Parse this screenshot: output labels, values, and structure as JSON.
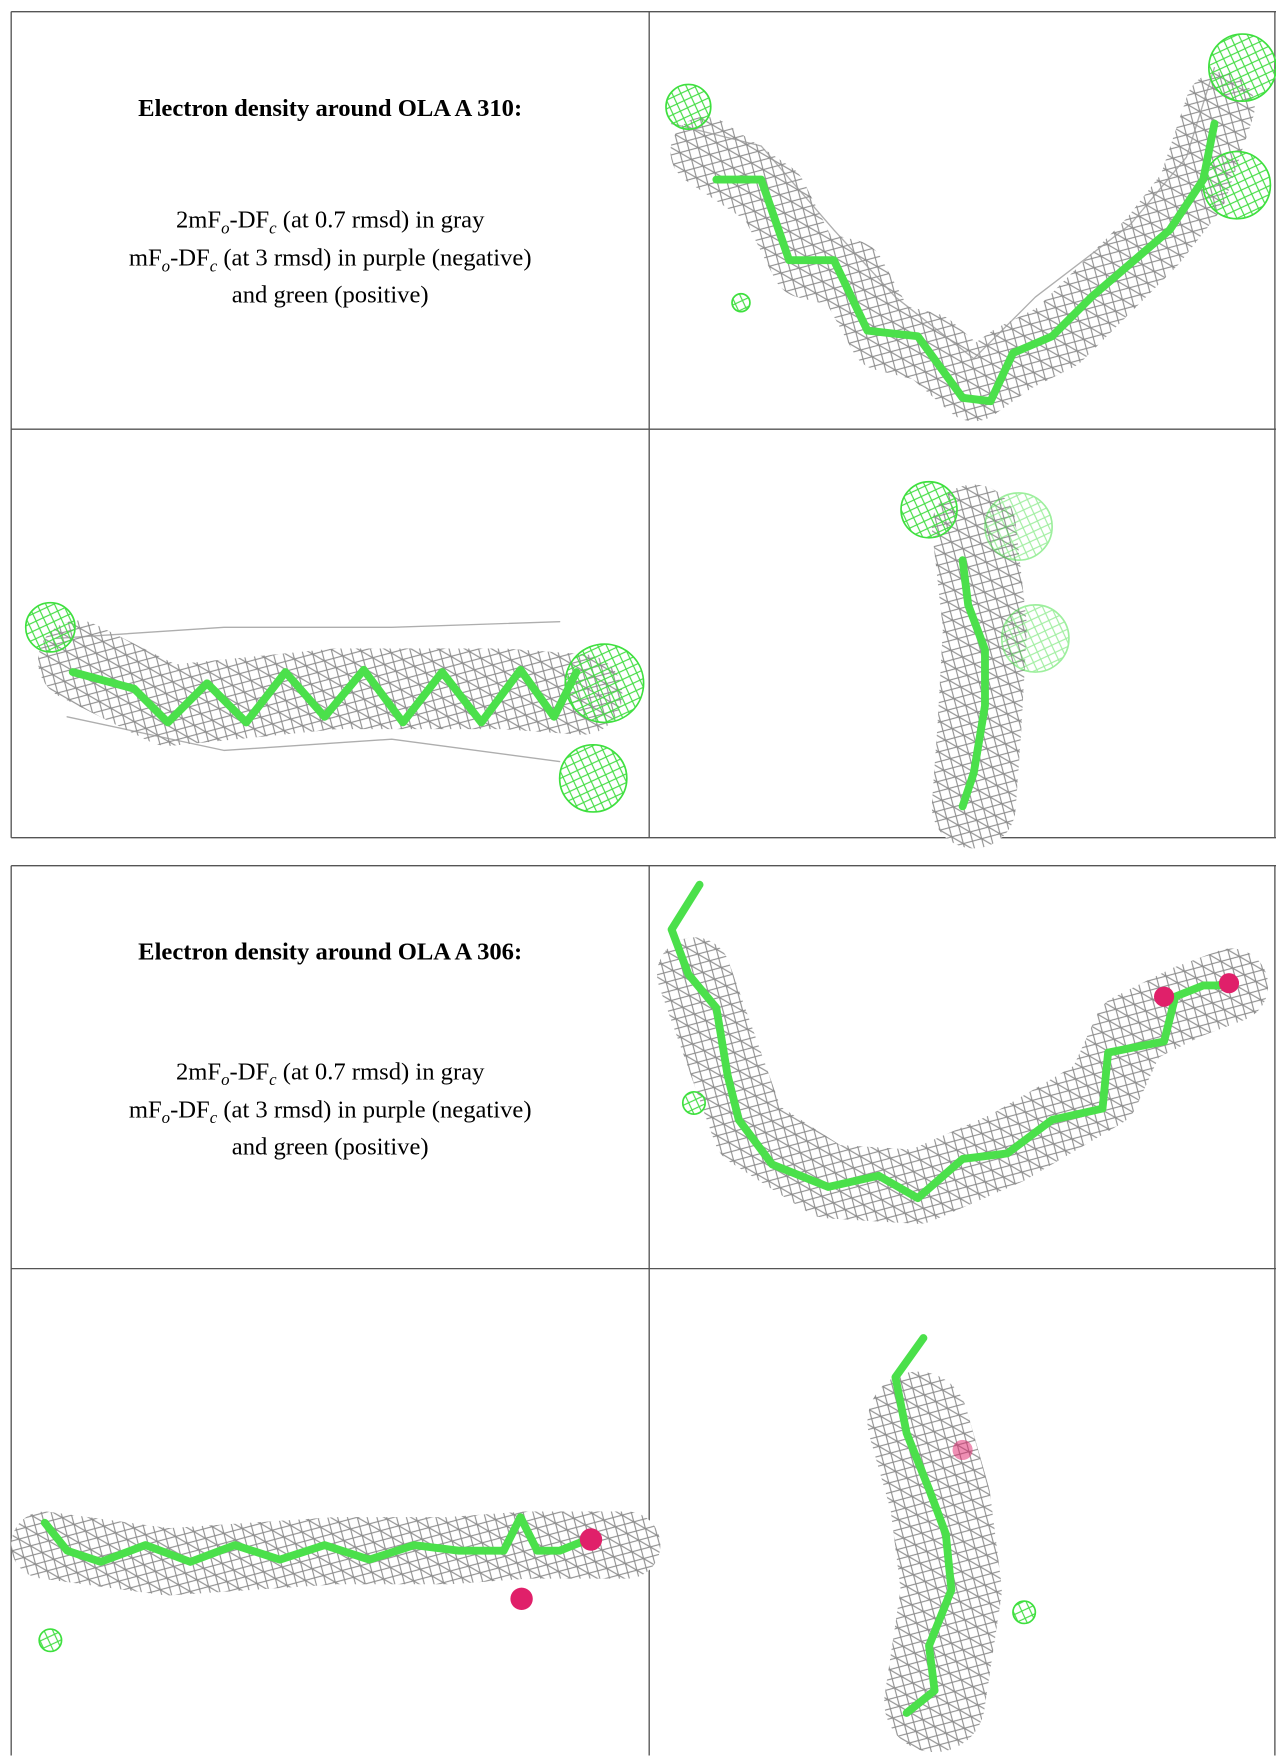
{
  "sections": [
    {
      "title": "Electron density around OLA A 310:",
      "legend": [
        [
          {
            "t": "2mF"
          },
          {
            "t": "o",
            "sub": true
          },
          {
            "t": "-DF"
          },
          {
            "t": "c",
            "sub": true
          },
          {
            "t": " (at 0.7 rmsd) in gray"
          }
        ],
        [
          {
            "t": "mF"
          },
          {
            "t": "o",
            "sub": true
          },
          {
            "t": "-DF"
          },
          {
            "t": "c",
            "sub": true
          },
          {
            "t": " (at 3 rmsd) in purple (negative)"
          }
        ],
        [
          {
            "t": "and green (positive)"
          }
        ]
      ]
    },
    {
      "title": "Electron density around OLA A 306:",
      "legend": [
        [
          {
            "t": "2mF"
          },
          {
            "t": "o",
            "sub": true
          },
          {
            "t": "-DF"
          },
          {
            "t": "c",
            "sub": true
          },
          {
            "t": " (at 0.7 rmsd) in gray"
          }
        ],
        [
          {
            "t": "mF"
          },
          {
            "t": "o",
            "sub": true
          },
          {
            "t": "-DF"
          },
          {
            "t": "c",
            "sub": true
          },
          {
            "t": " (at 3 rmsd) in purple (negative)"
          }
        ],
        [
          {
            "t": "and green (positive)"
          }
        ]
      ]
    }
  ]
}
